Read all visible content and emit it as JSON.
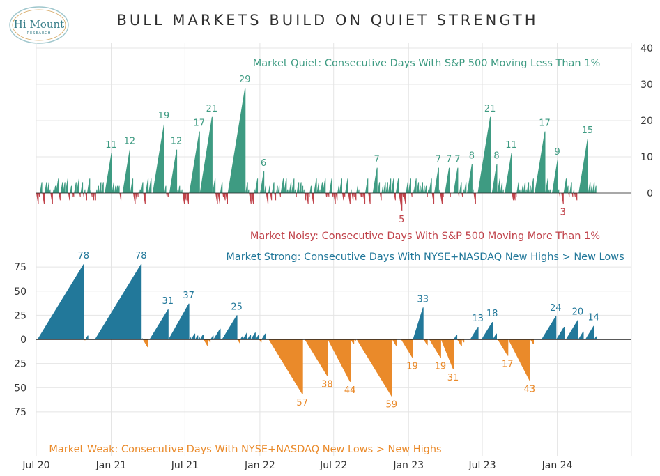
{
  "title": "BULL MARKETS BUILD ON QUIET STRENGTH",
  "logo": {
    "name": "Hi Mount",
    "sub": "RESEARCH"
  },
  "colors": {
    "quiet": "#3e9b82",
    "noisy": "#c0424a",
    "strong": "#22789a",
    "weak": "#ea8a2a",
    "grid": "#e4e4e4",
    "axis": "#222222"
  },
  "chart_data": [
    {
      "type": "bar",
      "name": "top-panel",
      "ylim": [
        0,
        40
      ],
      "yticks": [
        "0",
        "10",
        "20",
        "30",
        "40"
      ],
      "grid": true,
      "series": [
        {
          "name": "Market Quiet: Consecutive Days With S&P 500 Moving Less Than 1%",
          "direction": "up",
          "peaks": [
            {
              "date": "2021-01-01",
              "value": 11
            },
            {
              "date": "2021-02-15",
              "value": 12
            },
            {
              "date": "2021-05-10",
              "value": 19
            },
            {
              "date": "2021-06-10",
              "value": 12
            },
            {
              "date": "2021-08-05",
              "value": 17
            },
            {
              "date": "2021-09-05",
              "value": 21
            },
            {
              "date": "2021-11-25",
              "value": 29
            },
            {
              "date": "2022-01-10",
              "value": 6
            },
            {
              "date": "2022-10-15",
              "value": 7
            },
            {
              "date": "2023-03-15",
              "value": 7
            },
            {
              "date": "2023-04-10",
              "value": 7
            },
            {
              "date": "2023-05-01",
              "value": 7
            },
            {
              "date": "2023-06-05",
              "value": 8
            },
            {
              "date": "2023-07-20",
              "value": 21
            },
            {
              "date": "2023-08-05",
              "value": 8
            },
            {
              "date": "2023-09-10",
              "value": 11
            },
            {
              "date": "2023-12-01",
              "value": 17
            },
            {
              "date": "2024-01-01",
              "value": 9
            },
            {
              "date": "2024-03-15",
              "value": 15
            }
          ]
        },
        {
          "name": "Market Noisy: Consecutive Days With S&P 500 Moving More Than 1%",
          "direction": "down",
          "peaks": [
            {
              "date": "2022-12-15",
              "value": 5
            },
            {
              "date": "2024-01-15",
              "value": 3
            }
          ]
        }
      ]
    },
    {
      "type": "bar",
      "name": "bottom-panel",
      "ylim": [
        -75,
        75
      ],
      "yticks": [
        "75",
        "50",
        "25",
        "0",
        "25",
        "50",
        "75"
      ],
      "grid": true,
      "series": [
        {
          "name": "Market Strong: Consecutive Days With NYSE+NASDAQ New Highs > New Lows",
          "direction": "up",
          "peaks": [
            {
              "date": "2020-10-25",
              "value": 78
            },
            {
              "date": "2021-03-15",
              "value": 78
            },
            {
              "date": "2021-05-20",
              "value": 31
            },
            {
              "date": "2021-07-10",
              "value": 37
            },
            {
              "date": "2021-11-05",
              "value": 25
            },
            {
              "date": "2023-02-05",
              "value": 33
            },
            {
              "date": "2023-06-20",
              "value": 13
            },
            {
              "date": "2023-07-25",
              "value": 18
            },
            {
              "date": "2023-12-28",
              "value": 24
            },
            {
              "date": "2024-02-20",
              "value": 20
            },
            {
              "date": "2024-03-30",
              "value": 14
            }
          ]
        },
        {
          "name": "Market Weak: Consecutive Days With NYSE+NASDAQ New Lows > New Highs",
          "direction": "down",
          "peaks": [
            {
              "date": "2022-04-15",
              "value": 57
            },
            {
              "date": "2022-06-15",
              "value": 38
            },
            {
              "date": "2022-08-10",
              "value": 44
            },
            {
              "date": "2022-11-20",
              "value": 59
            },
            {
              "date": "2023-01-10",
              "value": 19
            },
            {
              "date": "2023-03-20",
              "value": 19
            },
            {
              "date": "2023-04-20",
              "value": 31
            },
            {
              "date": "2023-09-01",
              "value": 17
            },
            {
              "date": "2023-10-25",
              "value": 43
            }
          ]
        }
      ]
    }
  ],
  "x_axis": {
    "start": "2020-07-01",
    "end": "2024-07-01",
    "ticks": [
      {
        "label": "Jul 20",
        "date": "2020-07-01"
      },
      {
        "label": "Jan 21",
        "date": "2021-01-01"
      },
      {
        "label": "Jul 21",
        "date": "2021-07-01"
      },
      {
        "label": "Jan 22",
        "date": "2022-01-01"
      },
      {
        "label": "Jul 22",
        "date": "2022-07-01"
      },
      {
        "label": "Jan 23",
        "date": "2023-01-01"
      },
      {
        "label": "Jul 23",
        "date": "2023-07-01"
      },
      {
        "label": "Jan 24",
        "date": "2024-01-01"
      }
    ]
  }
}
